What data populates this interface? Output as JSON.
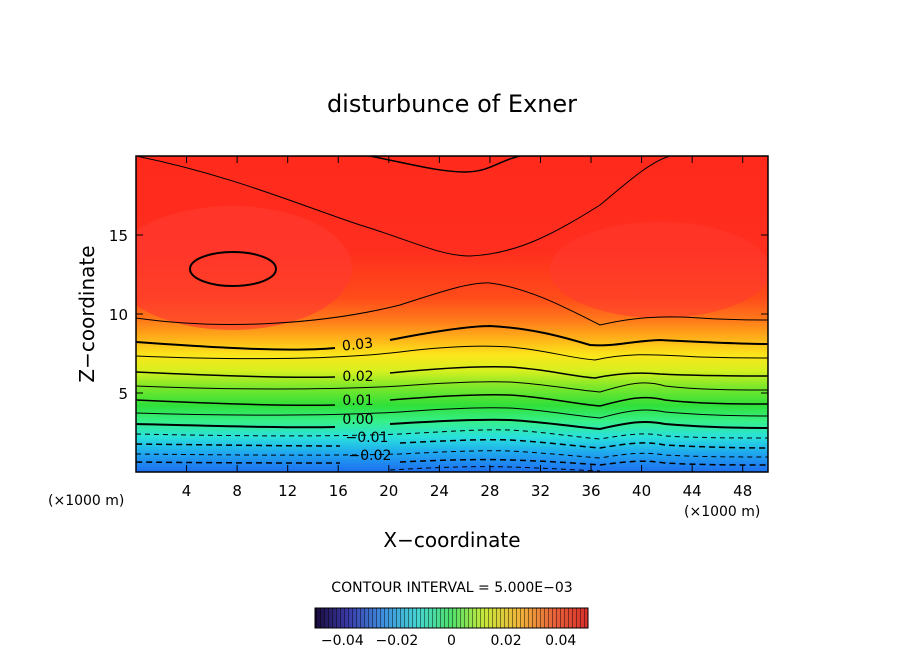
{
  "chart_data": {
    "type": "contour",
    "title": "disturbunce of Exner",
    "xlabel": "X−coordinate",
    "ylabel": "Z−coordinate",
    "x_unit": "(×1000 m)",
    "y_unit": "(×1000 m)",
    "xlim": [
      0,
      50
    ],
    "ylim": [
      0,
      20
    ],
    "xticks": [
      4,
      8,
      12,
      16,
      20,
      24,
      28,
      32,
      36,
      40,
      44,
      48
    ],
    "yticks": [
      5,
      10,
      15
    ],
    "contour_interval_text": "CONTOUR INTERVAL = 5.000E−03",
    "contour_labels": [
      {
        "text": "0.03",
        "x": 17.5,
        "z": 8.2
      },
      {
        "text": "0.02",
        "x": 17.5,
        "z": 6.0
      },
      {
        "text": "0.01",
        "x": 17.5,
        "z": 4.3
      },
      {
        "text": "0.00",
        "x": 17.5,
        "z": 3.1
      },
      {
        "text": "−0.01",
        "x": 18.5,
        "z": 2.1
      },
      {
        "text": "−0.02",
        "x": 18.5,
        "z": 1.0
      }
    ],
    "colorbar": {
      "range": [
        -0.05,
        0.05
      ],
      "tick_values": [
        -0.04,
        -0.02,
        0,
        0.02,
        0.04
      ],
      "tick_labels": [
        "−0.04",
        "−0.02",
        "0",
        "0.02",
        "0.04"
      ]
    }
  }
}
